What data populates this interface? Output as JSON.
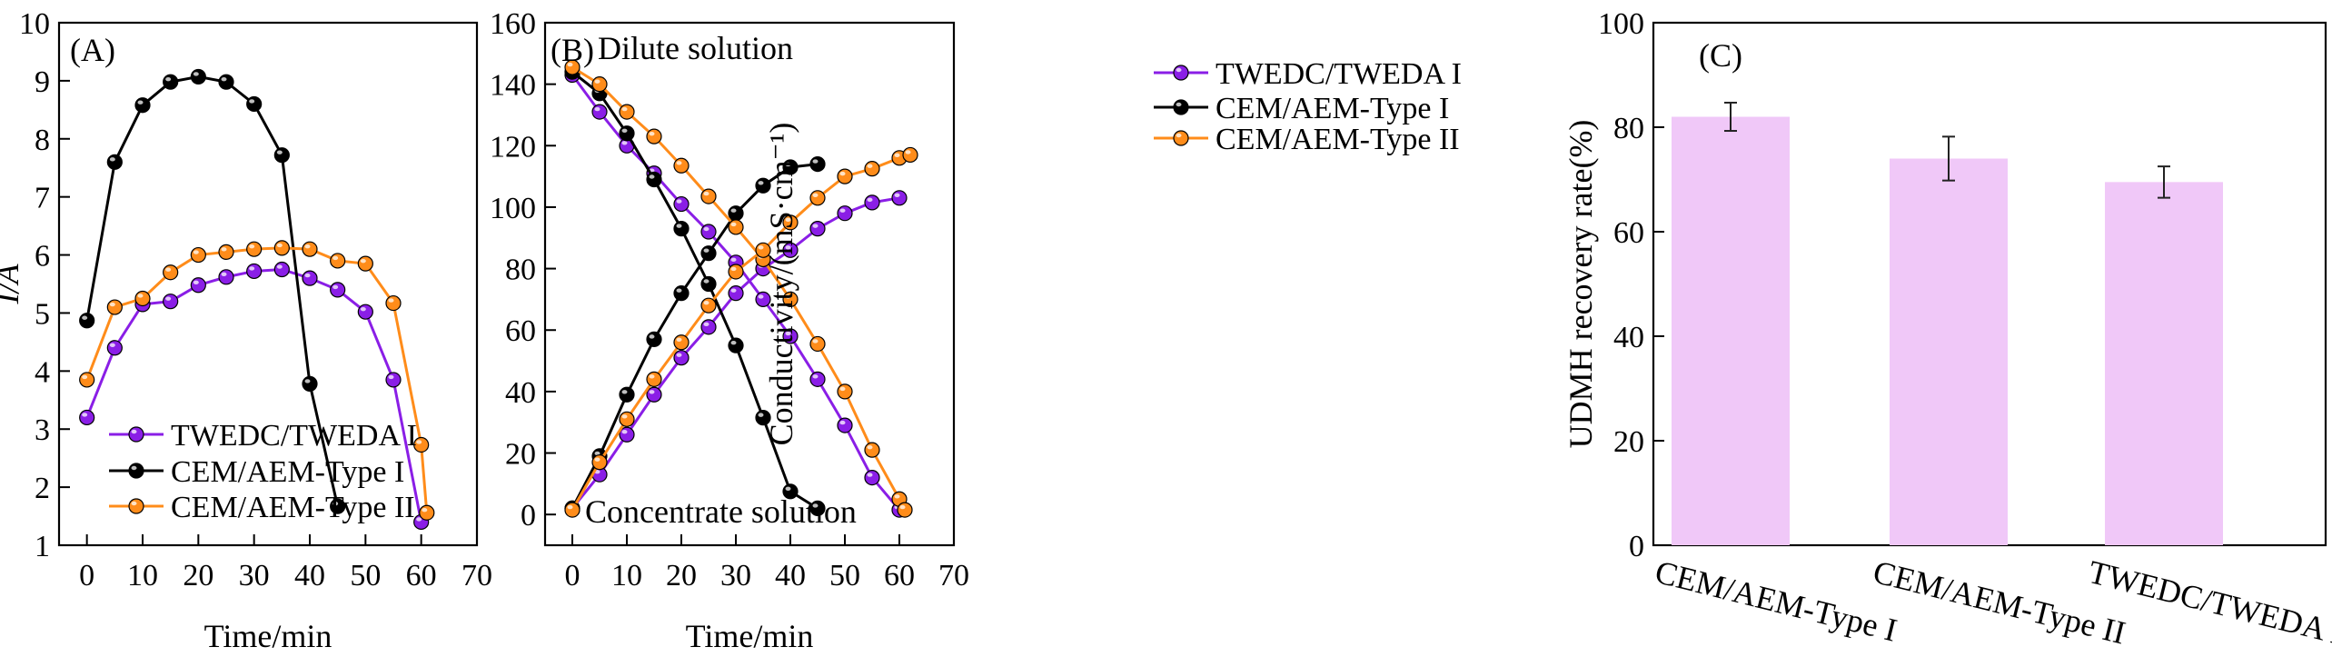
{
  "chart_data": [
    {
      "panel": "(A)",
      "type": "line",
      "xlabel": "Time/min",
      "ylabel": "I/A",
      "xlim": [
        -5,
        70
      ],
      "ylim": [
        1,
        10
      ],
      "xticks": [
        0,
        10,
        20,
        30,
        40,
        50,
        60,
        70
      ],
      "yticks": [
        1,
        2,
        3,
        4,
        5,
        6,
        7,
        8,
        9,
        10
      ],
      "legend_position": "bottom-left",
      "series": [
        {
          "name": "TWEDC/TWEDA I",
          "color": "#8a1ee6",
          "x": [
            0,
            5,
            10,
            15,
            20,
            25,
            30,
            35,
            40,
            45,
            50,
            55,
            60
          ],
          "values": [
            3.2,
            4.4,
            5.15,
            5.2,
            5.48,
            5.62,
            5.72,
            5.75,
            5.6,
            5.4,
            5.02,
            3.85,
            1.4
          ]
        },
        {
          "name": "CEM/AEM-Type I",
          "color": "#000000",
          "x": [
            0,
            5,
            10,
            15,
            20,
            25,
            30,
            35,
            40,
            45
          ],
          "values": [
            4.87,
            7.6,
            8.58,
            8.98,
            9.07,
            8.98,
            8.6,
            7.72,
            3.78,
            1.67
          ]
        },
        {
          "name": "CEM/AEM-Type II",
          "color": "#ff8c1a",
          "x": [
            0,
            5,
            10,
            15,
            20,
            25,
            30,
            35,
            40,
            45,
            50,
            55,
            60,
            61
          ],
          "values": [
            3.85,
            5.1,
            5.25,
            5.7,
            6.0,
            6.05,
            6.1,
            6.12,
            6.1,
            5.9,
            5.85,
            5.17,
            2.73,
            1.56
          ]
        }
      ]
    },
    {
      "panel": "(B)",
      "type": "line",
      "xlabel": "Time/min",
      "ylabel": "Conductivity/(mS·cm⁻¹)",
      "xlim": [
        -5,
        70
      ],
      "ylim": [
        -10,
        160
      ],
      "xticks": [
        0,
        10,
        20,
        30,
        40,
        50,
        60,
        70
      ],
      "yticks": [
        0,
        20,
        40,
        60,
        80,
        100,
        120,
        140,
        160
      ],
      "legend_position": "top-right",
      "annotations": [
        "Dilute solution",
        "Concentrate solution"
      ],
      "series": [
        {
          "name": "TWEDC/TWEDA I",
          "color": "#8a1ee6",
          "group": "dilute",
          "x": [
            0,
            5,
            10,
            15,
            20,
            25,
            30,
            35,
            40,
            45,
            50,
            55,
            60
          ],
          "values": [
            143,
            131,
            120,
            111,
            101,
            92,
            82,
            70,
            58,
            44,
            29,
            12,
            1.5
          ]
        },
        {
          "name": "TWEDC/TWEDA I",
          "color": "#8a1ee6",
          "group": "concentrate",
          "x": [
            0,
            5,
            10,
            15,
            20,
            25,
            30,
            35,
            40,
            45,
            50,
            55,
            60
          ],
          "values": [
            2,
            13,
            26,
            39,
            51,
            61,
            72,
            80,
            86,
            93,
            98,
            101.5,
            103
          ]
        },
        {
          "name": "CEM/AEM-Type I",
          "color": "#000000",
          "group": "dilute",
          "x": [
            0,
            5,
            10,
            15,
            20,
            25,
            30,
            35,
            40,
            45
          ],
          "values": [
            144,
            137,
            124,
            109,
            93,
            75,
            55,
            31.5,
            7.5,
            2
          ]
        },
        {
          "name": "CEM/AEM-Type I",
          "color": "#000000",
          "group": "concentrate",
          "x": [
            0,
            5,
            10,
            15,
            20,
            25,
            30,
            35,
            40,
            45
          ],
          "values": [
            2,
            19,
            39,
            57,
            72,
            85,
            98,
            107,
            113,
            114
          ]
        },
        {
          "name": "CEM/AEM-Type II",
          "color": "#ff8c1a",
          "group": "dilute",
          "x": [
            0,
            5,
            10,
            15,
            20,
            25,
            30,
            35,
            40,
            45,
            50,
            55,
            60,
            61
          ],
          "values": [
            145.5,
            140,
            131,
            123,
            113.5,
            103.5,
            93.5,
            83,
            70,
            55.5,
            40,
            21,
            5,
            1.5
          ]
        },
        {
          "name": "CEM/AEM-Type II",
          "color": "#ff8c1a",
          "group": "concentrate",
          "x": [
            0,
            5,
            10,
            15,
            20,
            25,
            30,
            35,
            40,
            45,
            50,
            55,
            60,
            62
          ],
          "values": [
            1.5,
            17,
            31,
            44,
            56,
            68,
            79,
            86,
            95,
            103,
            110,
            112.5,
            116,
            117
          ]
        }
      ]
    },
    {
      "panel": "(C)",
      "type": "bar",
      "xlabel": "",
      "ylabel": "UDMH recovery rate(%)",
      "ylim": [
        0,
        100
      ],
      "yticks": [
        0,
        20,
        40,
        60,
        80,
        100
      ],
      "bar_color": "#f0c8f8",
      "categories": [
        "CEM/AEM-Type I",
        "CEM/AEM-Type II",
        "TWEDC/TWEDA I"
      ],
      "values": [
        82,
        74,
        69.5
      ],
      "errors": [
        2.7,
        4.2,
        3.0
      ]
    }
  ]
}
